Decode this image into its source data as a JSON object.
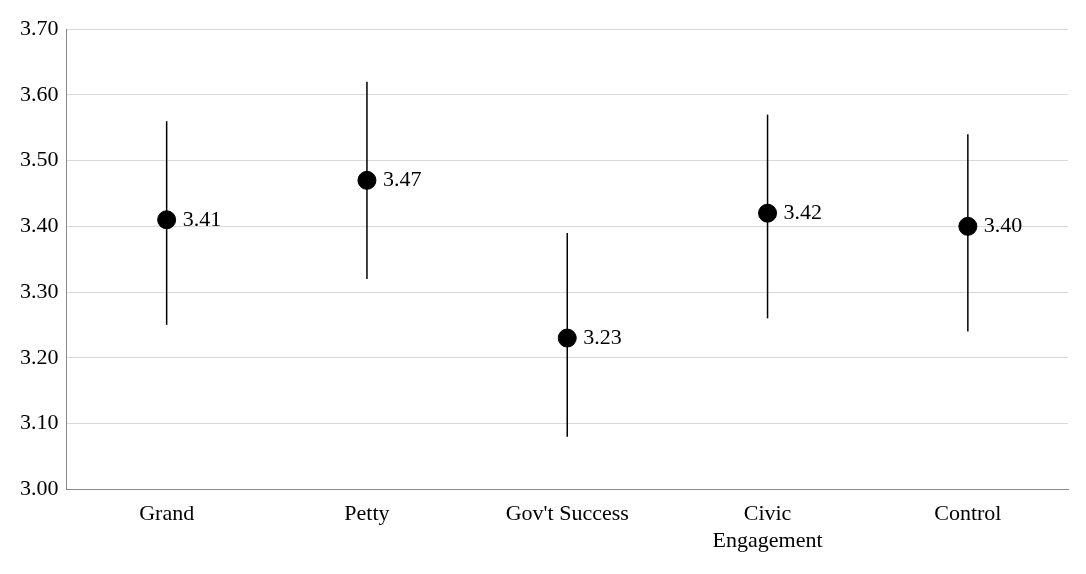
{
  "chart_data": {
    "type": "scatter",
    "categories": [
      "Grand",
      "Petty",
      "Gov't Success",
      "Civic Engagement",
      "Control"
    ],
    "series": [
      {
        "color": "#000000",
        "values": [
          3.41,
          3.47,
          3.23,
          3.42,
          3.4
        ],
        "errors": [
          [
            3.25,
            3.56
          ],
          [
            3.32,
            3.62
          ],
          [
            3.08,
            3.39
          ],
          [
            3.26,
            3.57
          ],
          [
            3.24,
            3.54
          ]
        ],
        "value_labels": [
          "3.41",
          "3.47",
          "3.23",
          "3.42",
          "3.40"
        ]
      }
    ],
    "ylim": [
      3.0,
      3.7
    ],
    "yticks": [
      {
        "value": 3.0,
        "label": "3.00"
      },
      {
        "value": 3.1,
        "label": "3.10"
      },
      {
        "value": 3.2,
        "label": "3.20"
      },
      {
        "value": 3.3,
        "label": "3.30"
      },
      {
        "value": 3.4,
        "label": "3.40"
      },
      {
        "value": 3.5,
        "label": "3.50"
      },
      {
        "value": 3.6,
        "label": "3.60"
      },
      {
        "value": 3.7,
        "label": "3.70"
      }
    ],
    "grid": "y",
    "marker": "circle",
    "legend": false
  }
}
